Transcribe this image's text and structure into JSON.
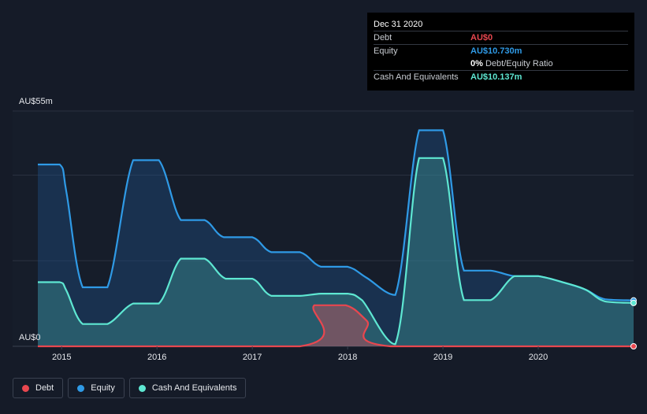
{
  "tooltip": {
    "date": "Dec 31 2020",
    "rows": [
      {
        "label": "Debt",
        "value": "AU$0",
        "color": "#e8474f"
      },
      {
        "label": "Equity",
        "value": "AU$10.730m",
        "color": "#2f9ae6"
      },
      {
        "label": "",
        "value": "0%",
        "suffix": "Debt/Equity Ratio",
        "color": "#ffffff"
      },
      {
        "label": "Cash And Equivalents",
        "value": "AU$10.137m",
        "color": "#5ee7d2"
      }
    ]
  },
  "legend": [
    {
      "label": "Debt",
      "color": "#e8474f"
    },
    {
      "label": "Equity",
      "color": "#2f9ae6"
    },
    {
      "label": "Cash And Equivalents",
      "color": "#5ee7d2"
    }
  ],
  "chart_data": {
    "type": "area",
    "y_top_label": "AU$55m",
    "y_bottom_label": "AU$0",
    "ylim": [
      0,
      55
    ],
    "xlim": [
      2014.75,
      2021.0
    ],
    "x_ticks": [
      "2015",
      "2016",
      "2017",
      "2018",
      "2019",
      "2020"
    ],
    "grid": true,
    "series": [
      {
        "name": "Equity",
        "color": "#2f9ae6",
        "points": [
          [
            2014.75,
            42.5
          ],
          [
            2014.98,
            42.5
          ],
          [
            2015.05,
            36
          ],
          [
            2015.22,
            13.8
          ],
          [
            2015.48,
            13.8
          ],
          [
            2015.75,
            43.5
          ],
          [
            2016.02,
            43.5
          ],
          [
            2016.25,
            29.5
          ],
          [
            2016.5,
            29.5
          ],
          [
            2016.7,
            25.5
          ],
          [
            2017.0,
            25.5
          ],
          [
            2017.2,
            22
          ],
          [
            2017.5,
            22
          ],
          [
            2017.72,
            18.6
          ],
          [
            2018.0,
            18.6
          ],
          [
            2018.2,
            16
          ],
          [
            2018.5,
            12
          ],
          [
            2018.75,
            50.5
          ],
          [
            2019.0,
            50.5
          ],
          [
            2019.22,
            17.7
          ],
          [
            2019.5,
            17.7
          ],
          [
            2019.75,
            16.4
          ],
          [
            2020.0,
            16.4
          ],
          [
            2020.3,
            14.7
          ],
          [
            2020.5,
            13.2
          ],
          [
            2020.7,
            11.0
          ],
          [
            2021.0,
            10.73
          ]
        ]
      },
      {
        "name": "Cash And Equivalents",
        "color": "#5ee7d2",
        "points": [
          [
            2014.75,
            15
          ],
          [
            2014.98,
            15
          ],
          [
            2015.05,
            13
          ],
          [
            2015.22,
            5.2
          ],
          [
            2015.48,
            5.2
          ],
          [
            2015.75,
            10
          ],
          [
            2016.02,
            10
          ],
          [
            2016.25,
            20.5
          ],
          [
            2016.5,
            20.5
          ],
          [
            2016.72,
            15.8
          ],
          [
            2017.0,
            15.8
          ],
          [
            2017.2,
            11.8
          ],
          [
            2017.5,
            11.8
          ],
          [
            2017.72,
            12.3
          ],
          [
            2018.0,
            12.3
          ],
          [
            2018.15,
            10.8
          ],
          [
            2018.5,
            0.5
          ],
          [
            2018.75,
            44
          ],
          [
            2019.0,
            44
          ],
          [
            2019.22,
            10.8
          ],
          [
            2019.5,
            10.8
          ],
          [
            2019.75,
            16.4
          ],
          [
            2020.0,
            16.4
          ],
          [
            2020.3,
            14.7
          ],
          [
            2020.5,
            13.2
          ],
          [
            2020.7,
            10.5
          ],
          [
            2021.0,
            10.137
          ]
        ]
      },
      {
        "name": "Debt",
        "color": "#e8474f",
        "points": [
          [
            2014.75,
            0
          ],
          [
            2017.5,
            0
          ],
          [
            2017.65,
            9.6
          ],
          [
            2017.98,
            9.6
          ],
          [
            2018.2,
            6
          ],
          [
            2018.45,
            0
          ],
          [
            2021.0,
            0
          ]
        ]
      }
    ]
  }
}
